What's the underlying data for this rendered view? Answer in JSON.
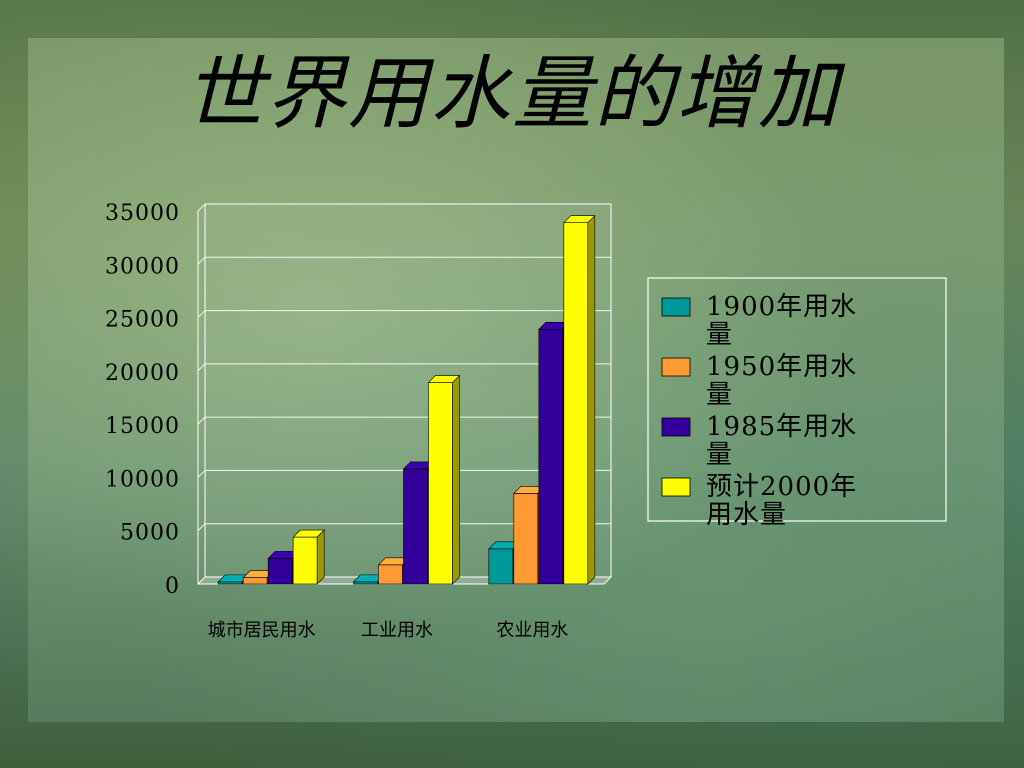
{
  "slide": {
    "title": "世界用水量的增加"
  },
  "chart_data": {
    "type": "bar",
    "title": "",
    "xlabel": "",
    "ylabel": "",
    "ylim": [
      0,
      35000
    ],
    "yticks": [
      0,
      5000,
      10000,
      15000,
      20000,
      25000,
      30000,
      35000
    ],
    "categories": [
      "城市居民用水",
      "工业用水",
      "农业用水"
    ],
    "series": [
      {
        "name": "1900年用水量",
        "values": [
          200,
          200,
          3300
        ],
        "color": "#009999"
      },
      {
        "name": "1950年用水量",
        "values": [
          600,
          1800,
          8500
        ],
        "color": "#FF9933"
      },
      {
        "name": "1985年用水量",
        "values": [
          2400,
          10800,
          23900
        ],
        "color": "#330099"
      },
      {
        "name": "预计2000年用水量",
        "values": [
          4400,
          18900,
          33900
        ],
        "color": "#FFFF00"
      }
    ],
    "grid": true,
    "legend_position": "right",
    "legend_lines": [
      [
        "1900年用水",
        "量"
      ],
      [
        "1950年用水",
        "量"
      ],
      [
        "1985年用水",
        "量"
      ],
      [
        "预计2000年",
        "用水量"
      ]
    ]
  }
}
